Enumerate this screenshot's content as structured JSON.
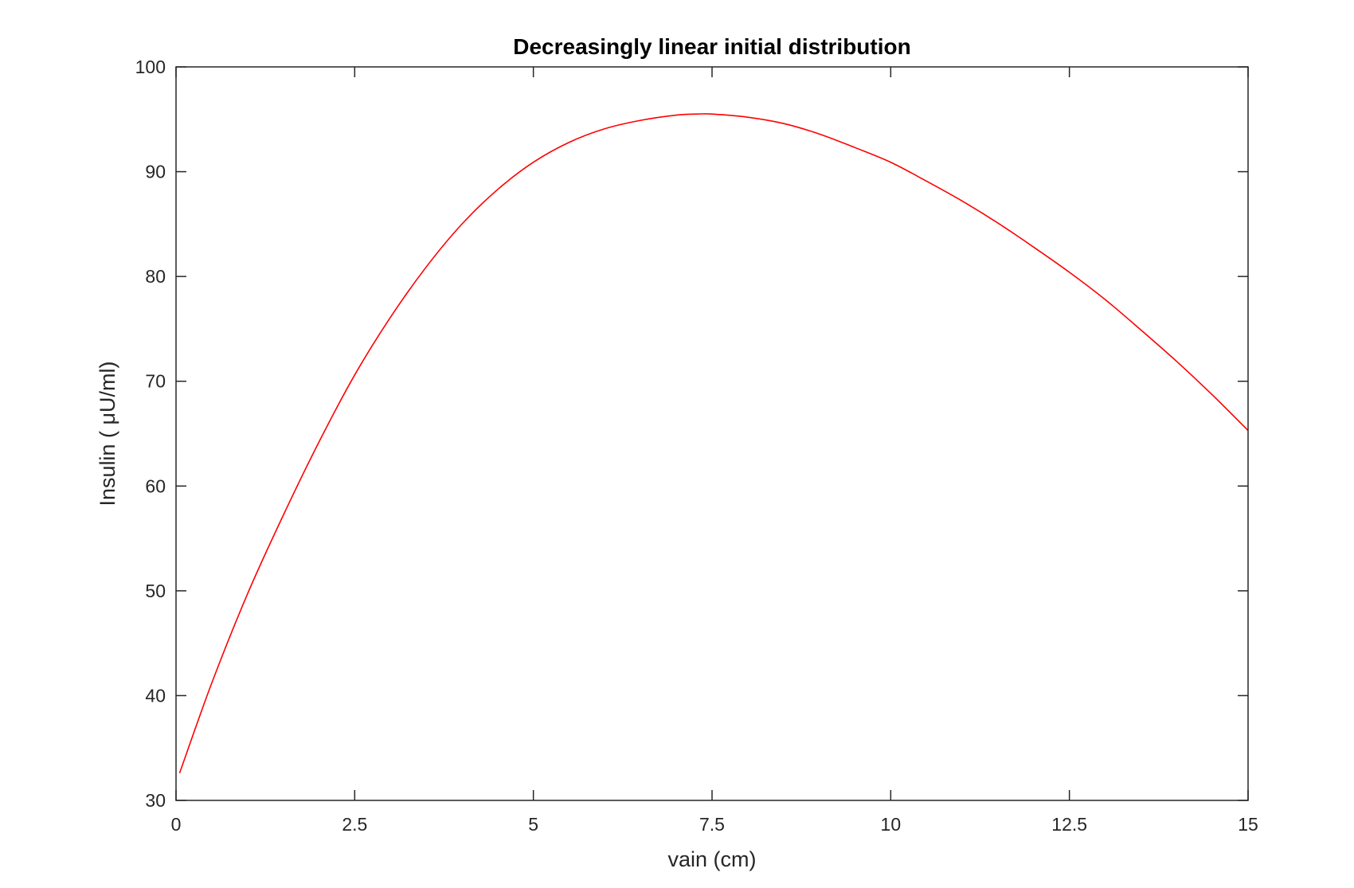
{
  "chart_data": {
    "type": "line",
    "title": "Decreasingly linear initial distribution",
    "xlabel": "vain (cm)",
    "ylabel": "Insulin ( μU/ml)",
    "xlim": [
      0,
      15
    ],
    "ylim": [
      30,
      100
    ],
    "xticks": [
      0,
      2.5,
      5,
      7.5,
      10,
      12.5,
      15
    ],
    "xtick_labels": [
      "0",
      "2.5",
      "5",
      "7.5",
      "10",
      "12.5",
      "15"
    ],
    "yticks": [
      30,
      40,
      50,
      60,
      70,
      80,
      90,
      100
    ],
    "ytick_labels": [
      "30",
      "40",
      "50",
      "60",
      "70",
      "80",
      "90",
      "100"
    ],
    "grid": false,
    "series": [
      {
        "color": "#ff0000",
        "x": [
          0.05,
          0.5,
          1,
          1.5,
          2,
          2.5,
          3,
          3.5,
          4,
          4.5,
          5,
          5.5,
          6,
          6.5,
          7,
          7.3,
          7.5,
          8,
          8.5,
          9,
          9.5,
          10,
          10.5,
          11,
          11.5,
          12,
          12.5,
          13,
          13.5,
          14,
          14.5,
          15
        ],
        "y": [
          32.6,
          41.2,
          49.7,
          57.2,
          64.2,
          70.6,
          76.1,
          80.9,
          85.0,
          88.3,
          90.9,
          92.8,
          94.1,
          94.9,
          95.4,
          95.5,
          95.5,
          95.2,
          94.6,
          93.6,
          92.3,
          90.9,
          89.1,
          87.2,
          85.1,
          82.8,
          80.4,
          77.8,
          74.9,
          71.9,
          68.7,
          65.3
        ]
      }
    ]
  }
}
